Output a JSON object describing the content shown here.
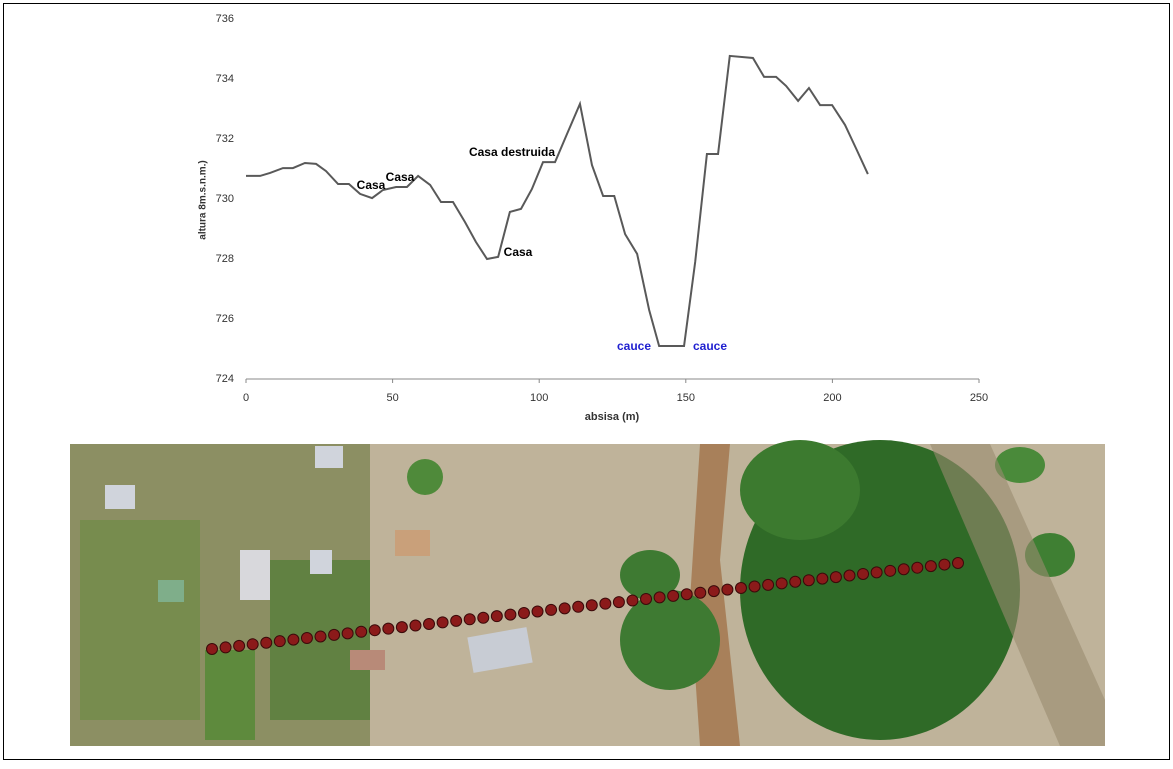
{
  "chart_data": {
    "type": "line",
    "xlabel": "absisa (m)",
    "ylabel": "altura 8m.s.n.m.)",
    "x": [
      0,
      4.8,
      8.2,
      12.6,
      16,
      20.1,
      23.9,
      27.3,
      31.4,
      35.1,
      38.9,
      43,
      46.7,
      51.2,
      54.9,
      58.7,
      62.8,
      66.5,
      70.6,
      74.7,
      78.4,
      82.2,
      86,
      90,
      93.8,
      97.5,
      101.3,
      105.4,
      109.5,
      113.9,
      118,
      121.8,
      125.6,
      129.3,
      133.4,
      137.5,
      140.9,
      149.4,
      153.2,
      157.2,
      161,
      165,
      172.9,
      176.7,
      180.8,
      184.2,
      188.3,
      192,
      195.8,
      199.9,
      204.3,
      208,
      212.1
    ],
    "values": [
      730.77,
      730.77,
      730.87,
      731.03,
      731.03,
      731.2,
      731.17,
      730.93,
      730.5,
      730.5,
      730.17,
      730.03,
      730.3,
      730.4,
      730.4,
      730.77,
      730.47,
      729.9,
      729.9,
      729.23,
      728.57,
      728.0,
      728.07,
      729.57,
      729.67,
      730.33,
      731.23,
      731.23,
      732.17,
      733.17,
      731.13,
      730.1,
      730.1,
      728.83,
      728.17,
      726.3,
      725.1,
      725.1,
      727.9,
      731.5,
      731.5,
      734.77,
      734.7,
      734.07,
      734.07,
      733.77,
      733.27,
      733.7,
      733.13,
      733.13,
      732.47,
      731.7,
      730.83
    ],
    "color": "#595959",
    "xlim": [
      0,
      250
    ],
    "xticks": [
      0,
      50,
      100,
      150,
      200,
      250
    ],
    "ylim": [
      724,
      736
    ],
    "yticks": [
      724,
      726,
      728,
      730,
      732,
      734,
      736
    ],
    "annotations": [
      {
        "text": "Casa",
        "color": "#000000"
      },
      {
        "text": "Casa",
        "color": "#000000"
      },
      {
        "text": "Casa destruida",
        "color": "#000000"
      },
      {
        "text": "Casa",
        "color": "#000000"
      },
      {
        "text": "cauce",
        "color": "#1f1fd0"
      },
      {
        "text": "cauce",
        "color": "#1f1fd0"
      }
    ]
  }
}
